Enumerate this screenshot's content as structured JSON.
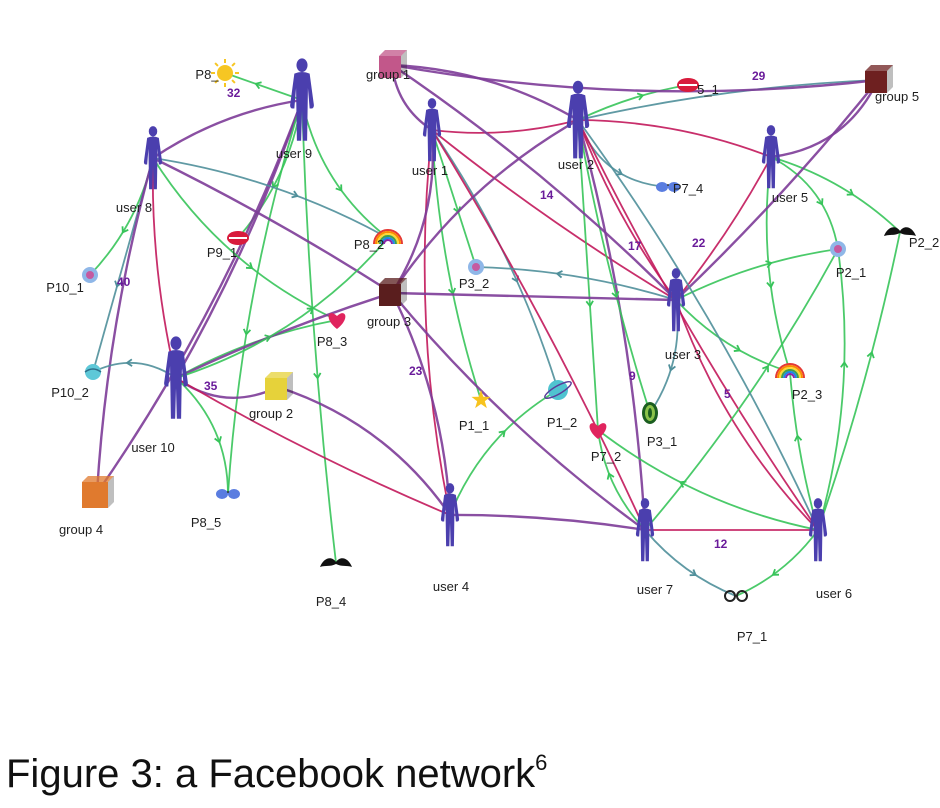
{
  "caption": {
    "text": "Figure 3: a Facebook network",
    "superscript": "6"
  },
  "colors": {
    "user": "#4b3fae",
    "green_edge": "#37c45a",
    "purple_edge": "#7d3c98",
    "red_edge": "#c2185b",
    "teal_edge": "#4f8f9a"
  },
  "nodes": [
    {
      "id": "user_1",
      "label": "user 1",
      "kind": "user"
    },
    {
      "id": "user_2",
      "label": "user 2",
      "kind": "user"
    },
    {
      "id": "user_3",
      "label": "user 3",
      "kind": "user"
    },
    {
      "id": "user_4",
      "label": "user 4",
      "kind": "user"
    },
    {
      "id": "user_5",
      "label": "user 5",
      "kind": "user"
    },
    {
      "id": "user_6",
      "label": "user 6",
      "kind": "user"
    },
    {
      "id": "user_7",
      "label": "user 7",
      "kind": "user"
    },
    {
      "id": "user_8",
      "label": "user 8",
      "kind": "user"
    },
    {
      "id": "user_9",
      "label": "user 9",
      "kind": "user"
    },
    {
      "id": "user_10",
      "label": "user 10",
      "kind": "user"
    },
    {
      "id": "group_1",
      "label": "group 1",
      "kind": "group",
      "color": "#c2578a"
    },
    {
      "id": "group_2",
      "label": "group 2",
      "kind": "group",
      "color": "#e6d23a"
    },
    {
      "id": "group_3",
      "label": "group 3",
      "kind": "group",
      "color": "#5a1e1e"
    },
    {
      "id": "group_4",
      "label": "group 4",
      "kind": "group",
      "color": "#e07a2e"
    },
    {
      "id": "group_5",
      "label": "group 5",
      "kind": "group",
      "color": "#6e2020"
    },
    {
      "id": "P8_1",
      "label": "P8_",
      "kind": "post",
      "icon": "sun-icon"
    },
    {
      "id": "P9_1",
      "label": "P9_1",
      "kind": "post",
      "icon": "lips-icon"
    },
    {
      "id": "P10_1",
      "label": "P10_1",
      "kind": "post",
      "icon": "face-icon"
    },
    {
      "id": "P10_2",
      "label": "P10_2",
      "kind": "post",
      "icon": "ball-icon"
    },
    {
      "id": "P8_2",
      "label": "P8_2",
      "kind": "post",
      "icon": "rainbow-icon"
    },
    {
      "id": "P8_3",
      "label": "P8_3",
      "kind": "post",
      "icon": "heart-icon"
    },
    {
      "id": "P8_5",
      "label": "P8_5",
      "kind": "post",
      "icon": "sunglasses-icon"
    },
    {
      "id": "P8_4",
      "label": "P8_4",
      "kind": "post",
      "icon": "mustache-icon"
    },
    {
      "id": "P3_2",
      "label": "P3_2",
      "kind": "post",
      "icon": "face-icon"
    },
    {
      "id": "P1_1",
      "label": "P1_1",
      "kind": "post",
      "icon": "star-icon"
    },
    {
      "id": "P1_2",
      "label": "P1_2",
      "kind": "post",
      "icon": "planet-icon"
    },
    {
      "id": "P7_2",
      "label": "P7_2",
      "kind": "post",
      "icon": "heart-icon"
    },
    {
      "id": "P3_1",
      "label": "P3_1",
      "kind": "post",
      "icon": "alien-icon"
    },
    {
      "id": "P7_4",
      "label": "P7_4",
      "kind": "post",
      "icon": "sunglasses-icon"
    },
    {
      "id": "P5_1",
      "label": "5_1",
      "kind": "post",
      "icon": "lips-icon"
    },
    {
      "id": "P2_1",
      "label": "P2_1",
      "kind": "post",
      "icon": "face-icon"
    },
    {
      "id": "P2_2",
      "label": "P2_2",
      "kind": "post",
      "icon": "mustache-icon"
    },
    {
      "id": "P2_3",
      "label": "P2_3",
      "kind": "post",
      "icon": "rainbow-icon"
    },
    {
      "id": "P7_1",
      "label": "P7_1",
      "kind": "post",
      "icon": "glasses-icon"
    }
  ],
  "edge_labels": [
    "32",
    "40",
    "35",
    "23",
    "14",
    "17",
    "22",
    "9",
    "5",
    "12",
    "29"
  ],
  "edges": [
    {
      "from": "user_9",
      "to": "P8_1",
      "color": "green",
      "arrow": true
    },
    {
      "from": "user_9",
      "to": "user_8",
      "color": "purple",
      "arrow": false
    },
    {
      "from": "user_9",
      "to": "P9_1",
      "color": "green",
      "arrow": true
    },
    {
      "from": "user_9",
      "to": "P8_2",
      "color": "green",
      "arrow": true
    },
    {
      "from": "user_9",
      "to": "user_10",
      "color": "purple",
      "arrow": false
    },
    {
      "from": "user_9",
      "to": "P8_4",
      "color": "green",
      "arrow": true
    },
    {
      "from": "user_9",
      "to": "group_4",
      "color": "purple",
      "arrow": false
    },
    {
      "from": "user_9",
      "to": "P8_5",
      "color": "green",
      "arrow": true
    },
    {
      "from": "user_8",
      "to": "group_3",
      "color": "purple",
      "arrow": false
    },
    {
      "from": "user_8",
      "to": "P8_3",
      "color": "green",
      "arrow": true
    },
    {
      "from": "user_8",
      "to": "P10_1",
      "color": "green",
      "arrow": true
    },
    {
      "from": "user_8",
      "to": "user_10",
      "color": "red",
      "arrow": false
    },
    {
      "from": "user_8",
      "to": "P10_2",
      "color": "teal",
      "arrow": true
    },
    {
      "from": "user_8",
      "to": "group_4",
      "color": "purple",
      "arrow": false
    },
    {
      "from": "user_8",
      "to": "P8_2",
      "color": "teal",
      "arrow": true
    },
    {
      "from": "user_10",
      "to": "group_2",
      "color": "purple",
      "arrow": false
    },
    {
      "from": "user_10",
      "to": "P8_3",
      "color": "green",
      "arrow": true
    },
    {
      "from": "user_10",
      "to": "user_4",
      "color": "red",
      "arrow": false
    },
    {
      "from": "user_10",
      "to": "P8_5",
      "color": "green",
      "arrow": true
    },
    {
      "from": "user_10",
      "to": "P10_2",
      "color": "teal",
      "arrow": true
    },
    {
      "from": "user_10",
      "to": "group_3",
      "color": "purple",
      "arrow": false
    },
    {
      "from": "user_10",
      "to": "P8_2",
      "color": "green",
      "arrow": true
    },
    {
      "from": "user_1",
      "to": "group_1",
      "color": "purple",
      "arrow": false
    },
    {
      "from": "user_1",
      "to": "user_2",
      "color": "red",
      "arrow": false
    },
    {
      "from": "user_1",
      "to": "P3_2",
      "color": "green",
      "arrow": true
    },
    {
      "from": "user_1",
      "to": "P1_1",
      "color": "green",
      "arrow": true
    },
    {
      "from": "user_1",
      "to": "P1_2",
      "color": "teal",
      "arrow": true
    },
    {
      "from": "user_1",
      "to": "user_4",
      "color": "red",
      "arrow": false
    },
    {
      "from": "user_1",
      "to": "user_7",
      "color": "red",
      "arrow": false
    },
    {
      "from": "user_1",
      "to": "user_3",
      "color": "red",
      "arrow": false
    },
    {
      "from": "user_1",
      "to": "group_3",
      "color": "purple",
      "arrow": false
    },
    {
      "from": "user_2",
      "to": "group_1",
      "color": "purple",
      "arrow": false
    },
    {
      "from": "user_2",
      "to": "P5_1",
      "color": "green",
      "arrow": true
    },
    {
      "from": "user_2",
      "to": "P7_4",
      "color": "teal",
      "arrow": true
    },
    {
      "from": "user_2",
      "to": "user_5",
      "color": "red",
      "arrow": false
    },
    {
      "from": "user_2",
      "to": "user_3",
      "color": "red",
      "arrow": false
    },
    {
      "from": "user_2",
      "to": "P7_2",
      "color": "green",
      "arrow": true
    },
    {
      "from": "user_2",
      "to": "user_6",
      "color": "red",
      "arrow": false
    },
    {
      "from": "user_2",
      "to": "user_7",
      "color": "purple",
      "arrow": false
    },
    {
      "from": "user_2",
      "to": "group_3",
      "color": "purple",
      "arrow": false
    },
    {
      "from": "user_2",
      "to": "group_5",
      "color": "teal",
      "arrow": false
    },
    {
      "from": "user_2",
      "to": "P3_1",
      "color": "green",
      "arrow": true
    },
    {
      "from": "user_5",
      "to": "P2_1",
      "color": "green",
      "arrow": true
    },
    {
      "from": "user_5",
      "to": "P2_3",
      "color": "green",
      "arrow": true
    },
    {
      "from": "user_5",
      "to": "user_3",
      "color": "red",
      "arrow": false
    },
    {
      "from": "user_5",
      "to": "group_5",
      "color": "purple",
      "arrow": false
    },
    {
      "from": "user_5",
      "to": "P2_2",
      "color": "green",
      "arrow": true
    },
    {
      "from": "user_3",
      "to": "P3_2",
      "color": "teal",
      "arrow": true
    },
    {
      "from": "user_3",
      "to": "group_3",
      "color": "purple",
      "arrow": false
    },
    {
      "from": "user_3",
      "to": "P2_3",
      "color": "green",
      "arrow": true
    },
    {
      "from": "user_3",
      "to": "P3_1",
      "color": "teal",
      "arrow": true
    },
    {
      "from": "user_3",
      "to": "user_6",
      "color": "red",
      "arrow": false
    },
    {
      "from": "user_3",
      "to": "P2_1",
      "color": "green",
      "arrow": true
    },
    {
      "from": "user_3",
      "to": "group_5",
      "color": "purple",
      "arrow": false
    },
    {
      "from": "user_4",
      "to": "P1_2",
      "color": "green",
      "arrow": true
    },
    {
      "from": "user_4",
      "to": "group_3",
      "color": "purple",
      "arrow": false
    },
    {
      "from": "user_4",
      "to": "user_7",
      "color": "purple",
      "arrow": false
    },
    {
      "from": "user_4",
      "to": "group_2",
      "color": "purple",
      "arrow": false
    },
    {
      "from": "user_7",
      "to": "P7_2",
      "color": "green",
      "arrow": true
    },
    {
      "from": "user_7",
      "to": "P7_1",
      "color": "teal",
      "arrow": true
    },
    {
      "from": "user_7",
      "to": "user_6",
      "color": "red",
      "arrow": false
    },
    {
      "from": "user_7",
      "to": "P2_1",
      "color": "green",
      "arrow": true
    },
    {
      "from": "user_7",
      "to": "group_3",
      "color": "purple",
      "arrow": false
    },
    {
      "from": "user_6",
      "to": "P2_1",
      "color": "green",
      "arrow": true
    },
    {
      "from": "user_6",
      "to": "P7_1",
      "color": "green",
      "arrow": true
    },
    {
      "from": "user_6",
      "to": "P2_2",
      "color": "green",
      "arrow": true
    },
    {
      "from": "user_6",
      "to": "P7_2",
      "color": "green",
      "arrow": true
    },
    {
      "from": "user_6",
      "to": "user_2",
      "color": "teal",
      "arrow": false
    },
    {
      "from": "user_6",
      "to": "P2_3",
      "color": "green",
      "arrow": true
    },
    {
      "from": "group_1",
      "to": "group_5",
      "color": "purple",
      "arrow": false
    },
    {
      "from": "group_1",
      "to": "user_3",
      "color": "purple",
      "arrow": false
    }
  ]
}
